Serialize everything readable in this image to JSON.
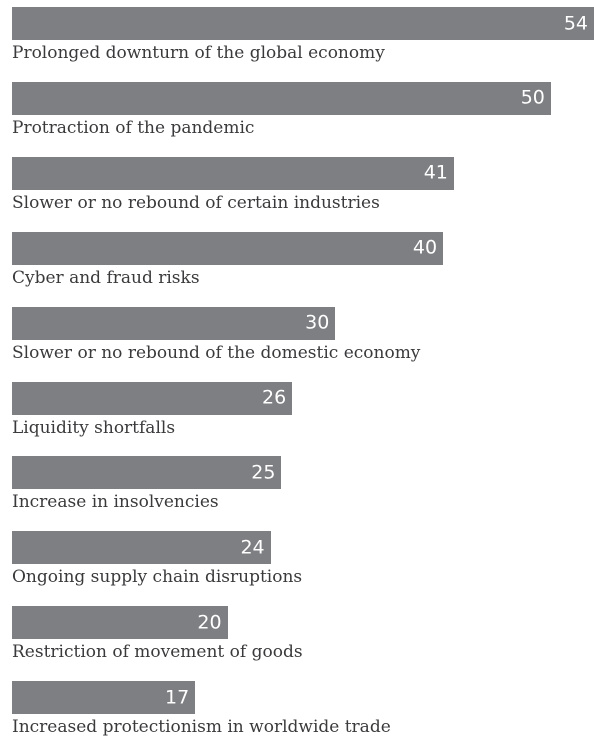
{
  "chart_data": {
    "type": "bar",
    "orientation": "horizontal",
    "title": "",
    "xlabel": "",
    "ylabel": "",
    "xlim": [
      0,
      54
    ],
    "grid": false,
    "legend": "none",
    "bar_color": "#7e7f83",
    "value_color": "#ffffff",
    "label_color": "#3a3a3c",
    "categories": [
      "Prolonged downturn of the global economy",
      "Protraction of the pandemic",
      "Slower or no rebound of certain industries",
      "Cyber and fraud risks",
      "Slower or no rebound of the domestic economy",
      "Liquidity shortfalls",
      "Increase in insolvencies",
      "Ongoing supply chain disruptions",
      "Restriction of movement of goods",
      "Increased protectionism in worldwide trade"
    ],
    "values": [
      54,
      50,
      41,
      40,
      30,
      26,
      25,
      24,
      20,
      17
    ]
  }
}
